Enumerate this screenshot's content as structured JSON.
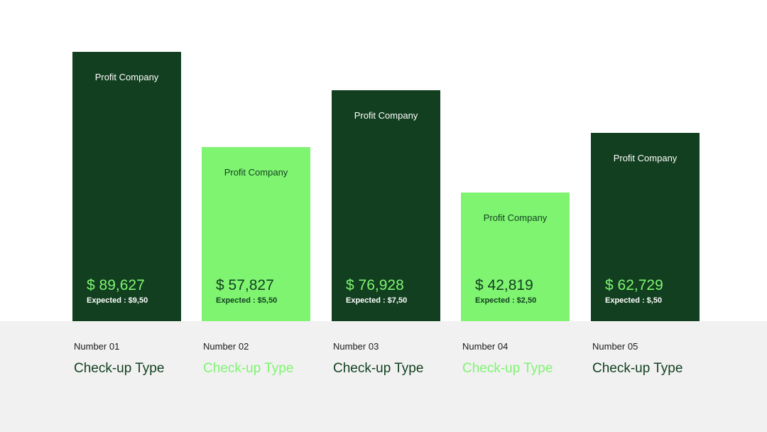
{
  "colors": {
    "dark": "#113f1f",
    "light": "#7ff471",
    "footer": "#f1f1f1",
    "text": "#1b1b1b"
  },
  "chart_data": {
    "type": "bar",
    "categories": [
      "Number 01",
      "Number 02",
      "Number 03",
      "Number 04",
      "Number 05"
    ],
    "values": [
      89627,
      57827,
      76928,
      42819,
      62729
    ],
    "bars": [
      {
        "title": "Profit Company",
        "value": "$ 89,627",
        "value_number": 89627,
        "expected": "Expected : $9,50",
        "style": "dark",
        "number": "Number 01",
        "type": "Check-up Type"
      },
      {
        "title": "Profit Company",
        "value": "$ 57,827",
        "value_number": 57827,
        "expected": "Expected : $5,50",
        "style": "light",
        "number": "Number 02",
        "type": "Check-up Type"
      },
      {
        "title": "Profit Company",
        "value": "$ 76,928",
        "value_number": 76928,
        "expected": "Expected : $7,50",
        "style": "dark",
        "number": "Number 03",
        "type": "Check-up Type"
      },
      {
        "title": "Profit Company",
        "value": "$ 42,819",
        "value_number": 42819,
        "expected": "Expected : $2,50",
        "style": "light",
        "number": "Number 04",
        "type": "Check-up Type"
      },
      {
        "title": "Profit Company",
        "value": "$ 62,729",
        "value_number": 62729,
        "expected": "Expected : $,50",
        "style": "dark",
        "number": "Number 05",
        "type": "Check-up Type"
      }
    ]
  }
}
